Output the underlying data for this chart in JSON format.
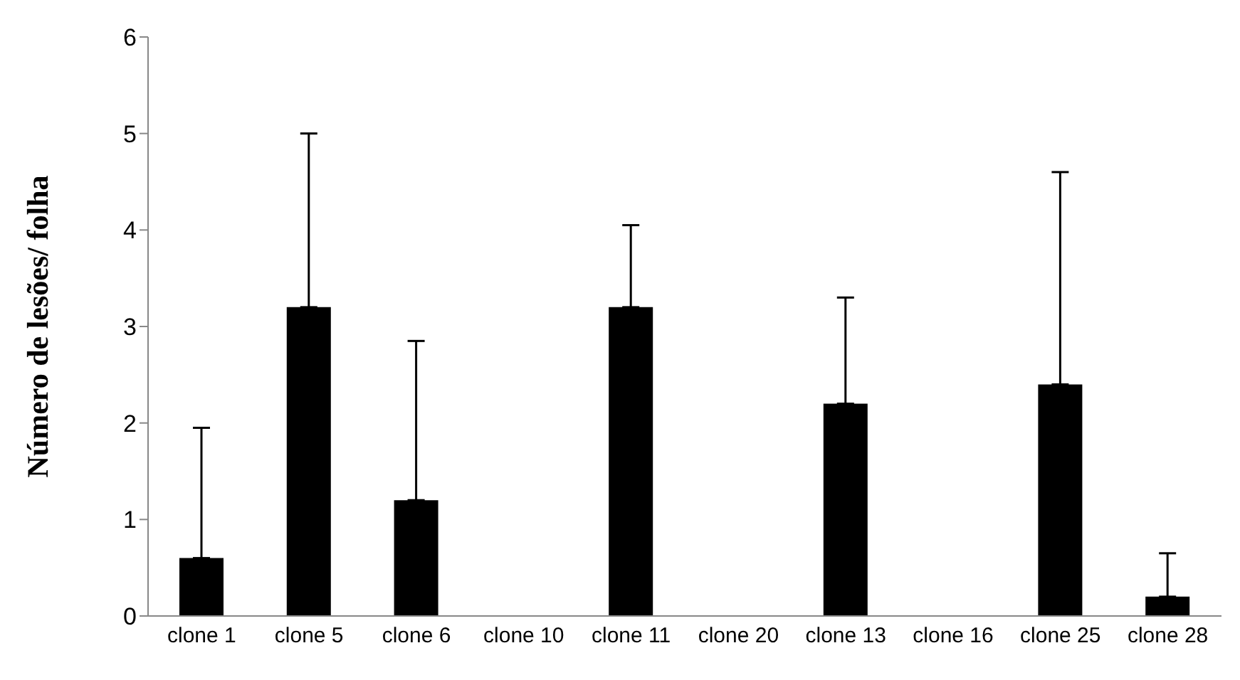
{
  "chart_data": {
    "type": "bar",
    "ylabel": "Número de lesões/ folha",
    "categories": [
      "clone 1",
      "clone 5",
      "clone 6",
      "clone 10",
      "clone 11",
      "clone 20",
      "clone 13",
      "clone 16",
      "clone 25",
      "clone 28"
    ],
    "values": [
      0.6,
      3.2,
      1.2,
      0,
      3.2,
      0,
      2.2,
      0,
      2.4,
      0.2
    ],
    "errors": [
      [
        0.6,
        1.95
      ],
      [
        3.2,
        5.0
      ],
      [
        1.2,
        2.85
      ],
      null,
      [
        3.2,
        4.05
      ],
      null,
      [
        2.2,
        3.3
      ],
      null,
      [
        2.4,
        4.6
      ],
      [
        0.2,
        0.65
      ]
    ],
    "color": "#000000",
    "ylim": [
      0,
      6
    ],
    "yticks": [
      0,
      1,
      2,
      3,
      4,
      5,
      6
    ],
    "grid": false,
    "legend": false
  }
}
